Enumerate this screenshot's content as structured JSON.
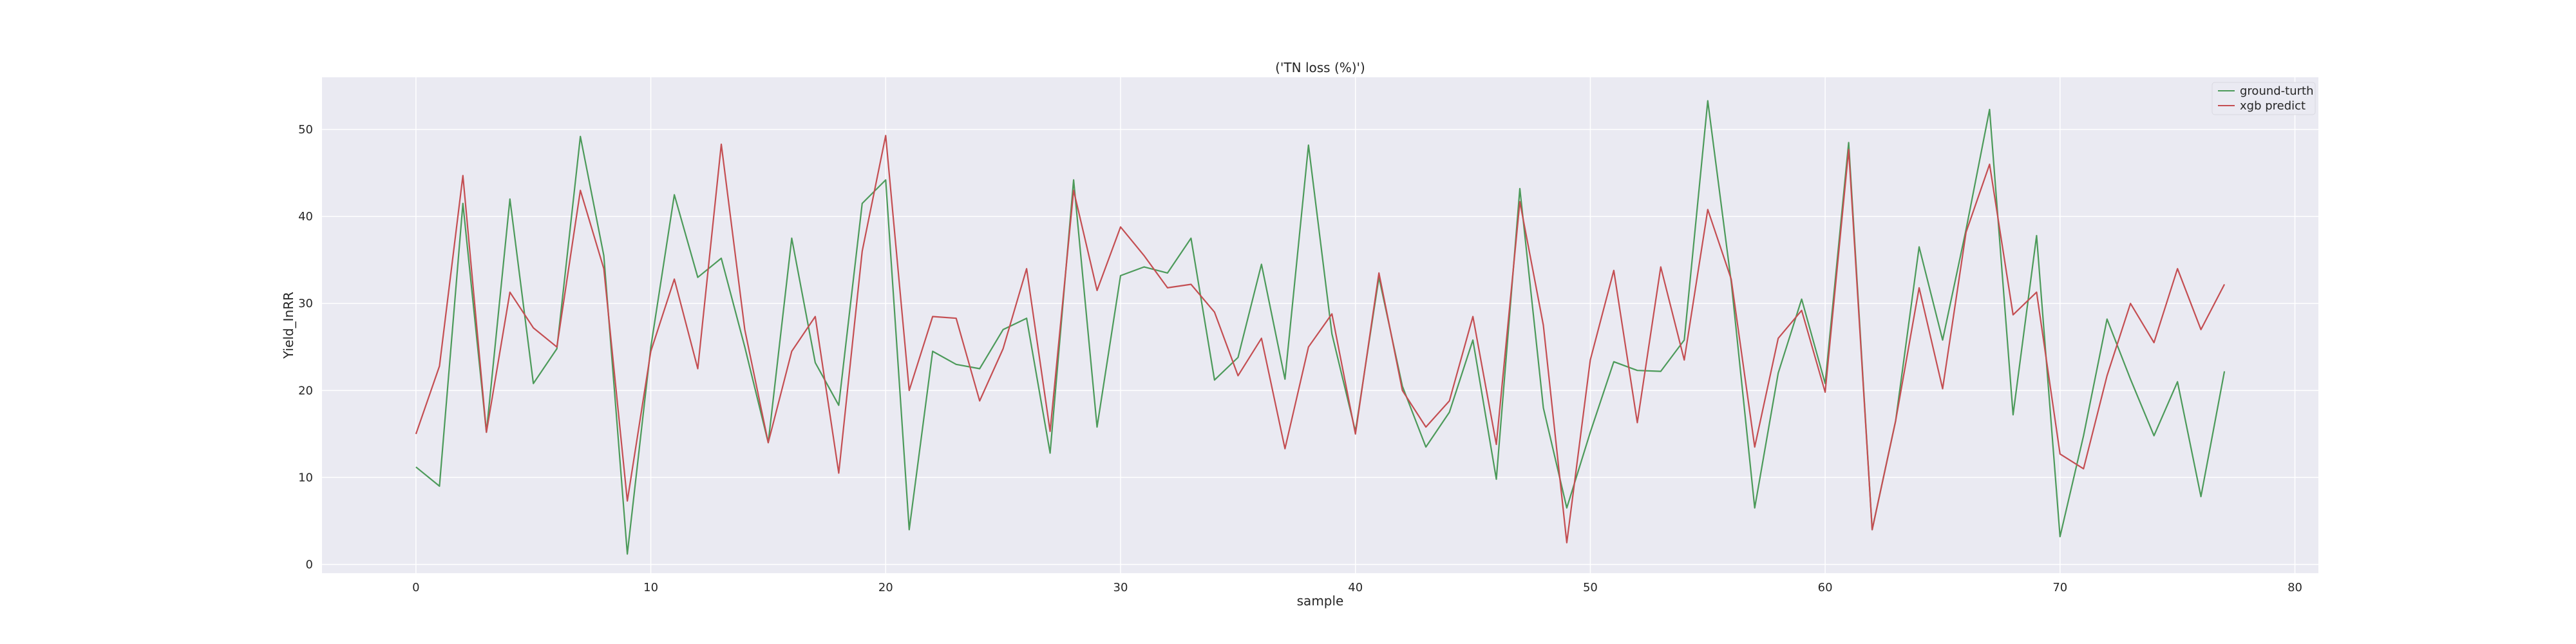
{
  "chart_data": {
    "type": "line",
    "title": "('TN loss (%)')",
    "xlabel": "sample",
    "ylabel": "Yield_InRR",
    "xlim": [
      -4,
      81
    ],
    "ylim": [
      -1,
      56
    ],
    "x_ticks": [
      0,
      10,
      20,
      30,
      40,
      50,
      60,
      70,
      80
    ],
    "y_ticks": [
      0,
      10,
      20,
      30,
      40,
      50
    ],
    "grid": true,
    "legend_position": "top-right",
    "colors": {
      "background": "#eaeaf2",
      "grid": "#ffffff",
      "ground_truth": "#4c9a5a",
      "xgb_predict": "#c44e52"
    },
    "x": [
      0,
      1,
      2,
      3,
      4,
      5,
      6,
      7,
      8,
      9,
      10,
      11,
      12,
      13,
      14,
      15,
      16,
      17,
      18,
      19,
      20,
      21,
      22,
      23,
      24,
      25,
      26,
      27,
      28,
      29,
      30,
      31,
      32,
      33,
      34,
      35,
      36,
      37,
      38,
      39,
      40,
      41,
      42,
      43,
      44,
      45,
      46,
      47,
      48,
      49,
      50,
      51,
      52,
      53,
      54,
      55,
      56,
      57,
      58,
      59,
      60,
      61,
      62,
      63,
      64,
      65,
      66,
      67,
      68,
      69,
      70,
      71,
      72,
      73,
      74,
      75,
      76,
      77
    ],
    "series": [
      {
        "name": "ground-turth",
        "color": "#4c9a5a",
        "values": [
          11.2,
          9.0,
          41.5,
          15.2,
          42.0,
          20.8,
          24.8,
          49.2,
          35.5,
          1.2,
          25.0,
          42.5,
          33.0,
          35.2,
          25.0,
          14.0,
          37.5,
          23.2,
          18.3,
          41.5,
          44.2,
          4.0,
          24.5,
          23.0,
          22.5,
          27.0,
          28.3,
          12.8,
          44.2,
          15.8,
          33.2,
          34.2,
          33.5,
          37.5,
          21.2,
          23.8,
          34.5,
          21.3,
          48.2,
          26.5,
          15.3,
          33.0,
          20.5,
          13.5,
          17.5,
          25.8,
          9.8,
          43.2,
          18.0,
          6.5,
          15.2,
          23.3,
          22.3,
          22.2,
          25.8,
          53.3,
          32.5,
          6.5,
          22.0,
          30.5,
          20.8,
          48.5,
          4.0,
          16.5,
          36.5,
          25.8,
          38.5,
          52.3,
          17.2,
          37.8,
          3.2,
          14.8,
          28.2,
          21.3,
          14.8,
          21.0,
          7.8,
          22.2
        ]
      },
      {
        "name": "xgb predict",
        "color": "#c44e52",
        "values": [
          15.0,
          22.8,
          44.7,
          15.2,
          31.3,
          27.2,
          25.0,
          43.0,
          34.0,
          7.3,
          24.5,
          32.8,
          22.5,
          48.3,
          27.0,
          14.0,
          24.5,
          28.5,
          10.5,
          36.0,
          49.3,
          20.0,
          28.5,
          28.3,
          18.8,
          24.8,
          34.0,
          15.3,
          43.0,
          31.5,
          38.8,
          35.5,
          31.8,
          32.2,
          29.0,
          21.7,
          26.0,
          13.3,
          25.0,
          28.8,
          15.0,
          33.5,
          20.0,
          15.8,
          18.8,
          28.5,
          13.8,
          41.7,
          27.5,
          2.5,
          23.5,
          33.8,
          16.3,
          34.2,
          23.5,
          40.8,
          32.8,
          13.5,
          26.0,
          29.2,
          19.8,
          47.7,
          4.0,
          16.5,
          31.8,
          20.2,
          38.2,
          46.0,
          28.7,
          31.3,
          12.7,
          11.0,
          21.7,
          30.0,
          25.5,
          34.0,
          27.0,
          32.2
        ]
      }
    ]
  }
}
